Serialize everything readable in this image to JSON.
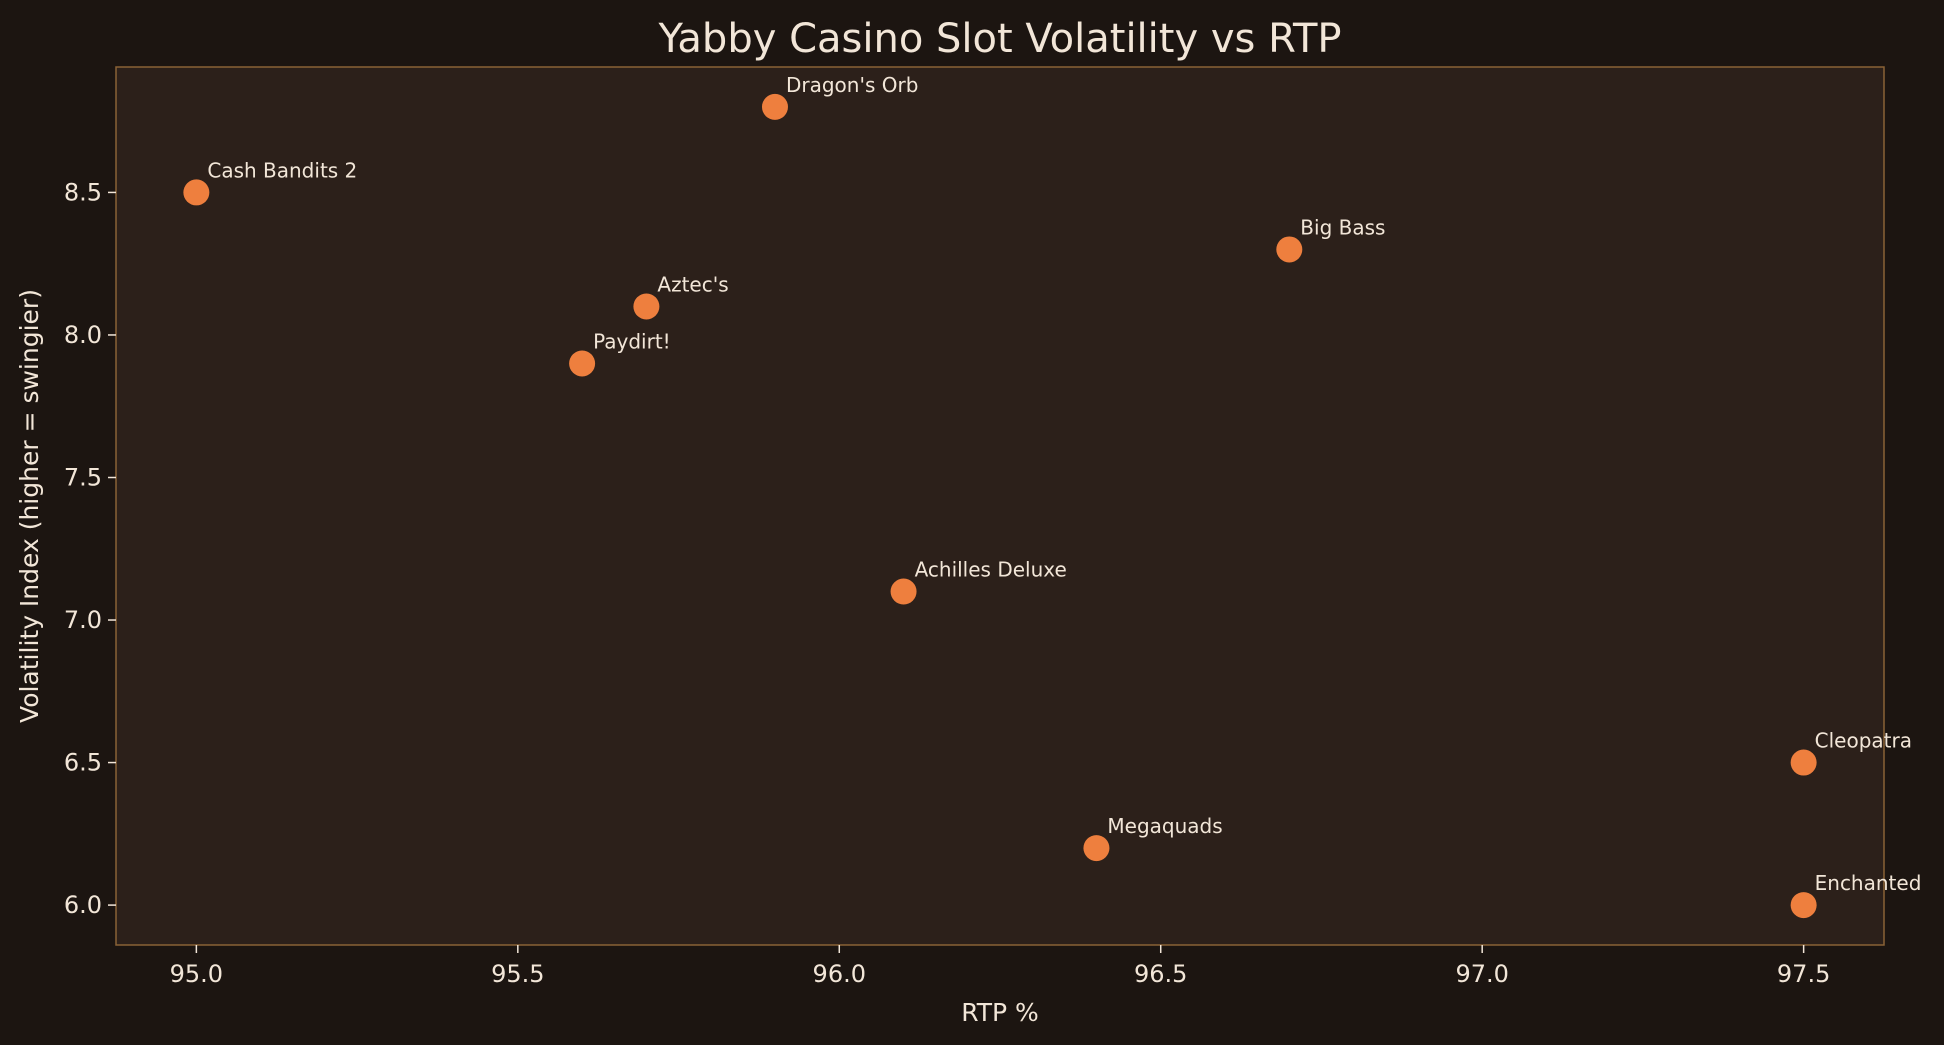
{
  "chart_data": {
    "type": "scatter",
    "title": "Yabby Casino Slot Volatility vs RTP",
    "xlabel": "RTP %",
    "ylabel": "Volatility Index (higher = swingier)",
    "xlim": [
      94.875,
      97.625
    ],
    "ylim": [
      5.86,
      8.94
    ],
    "xticks": [
      {
        "value": 95.0,
        "label": "95.0"
      },
      {
        "value": 95.5,
        "label": "95.5"
      },
      {
        "value": 96.0,
        "label": "96.0"
      },
      {
        "value": 96.5,
        "label": "96.5"
      },
      {
        "value": 97.0,
        "label": "97.0"
      },
      {
        "value": 97.5,
        "label": "97.5"
      }
    ],
    "yticks": [
      {
        "value": 6.0,
        "label": "6.0"
      },
      {
        "value": 6.5,
        "label": "6.5"
      },
      {
        "value": 7.0,
        "label": "7.0"
      },
      {
        "value": 7.5,
        "label": "7.5"
      },
      {
        "value": 8.0,
        "label": "8.0"
      },
      {
        "value": 8.5,
        "label": "8.5"
      }
    ],
    "grid": false,
    "points": [
      {
        "label": "Cash Bandits 2",
        "x": 95.0,
        "y": 8.5
      },
      {
        "label": "Dragon's Orb",
        "x": 95.9,
        "y": 8.8
      },
      {
        "label": "Aztec's",
        "x": 95.7,
        "y": 8.1
      },
      {
        "label": "Paydirt!",
        "x": 95.6,
        "y": 7.9
      },
      {
        "label": "Big Bass",
        "x": 96.7,
        "y": 8.3
      },
      {
        "label": "Achilles Deluxe",
        "x": 96.1,
        "y": 7.1
      },
      {
        "label": "Megaquads",
        "x": 96.4,
        "y": 6.2
      },
      {
        "label": "Cleopatra",
        "x": 97.5,
        "y": 6.5
      },
      {
        "label": "Enchanted",
        "x": 97.5,
        "y": 6.0
      }
    ],
    "colors": {
      "background": "#1c1511",
      "plot_background": "#2c201a",
      "frame": "#8a6236",
      "marker": "#ee7f3e",
      "text": "#f2e6d8"
    }
  }
}
